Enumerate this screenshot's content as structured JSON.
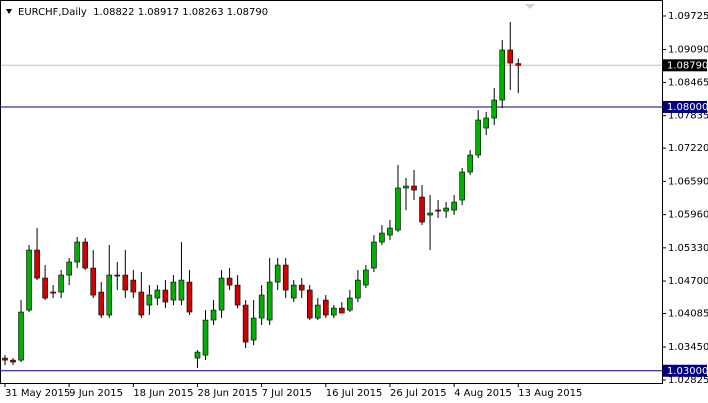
{
  "chart_data": {
    "type": "candlestick",
    "title": "EURCHF,Daily  1.08822 1.08917 1.08263 1.08790",
    "categories": [
      "31 May 2015",
      null,
      null,
      null,
      null,
      null,
      null,
      null,
      "9 Jun 2015",
      null,
      null,
      null,
      null,
      null,
      null,
      null,
      "18 Jun 2015",
      null,
      null,
      null,
      null,
      null,
      null,
      null,
      "28 Jun 2015",
      null,
      null,
      null,
      null,
      null,
      null,
      null,
      "7 Jul 2015",
      null,
      null,
      null,
      null,
      null,
      null,
      null,
      "16 Jul 2015",
      null,
      null,
      null,
      null,
      null,
      null,
      null,
      "26 Jul 2015",
      null,
      null,
      null,
      null,
      null,
      null,
      null,
      "4 Aug 2015",
      null,
      null,
      null,
      null,
      null,
      null,
      null,
      "13 Aug 2015"
    ],
    "open": [
      1.0324,
      1.03202,
      1.03202,
      1.0415,
      1.05288,
      1.04757,
      1.04492,
      1.04492,
      1.04814,
      1.05061,
      1.0544,
      1.04947,
      1.04492,
      1.04056,
      1.04814,
      1.04814,
      1.04719,
      1.04492,
      1.04245,
      1.04378,
      1.0453,
      1.0434,
      1.0434,
      1.04681,
      1.0324,
      1.03297,
      1.03961,
      1.0415,
      1.04757,
      1.04624,
      1.04245,
      1.03582,
      1.03999,
      1.03961,
      1.04681,
      1.05004,
      1.04378,
      1.04624,
      1.0453,
      1.03999,
      1.0434,
      1.04056,
      1.04188,
      1.0415,
      1.04378,
      1.04624,
      1.04947,
      1.0544,
      1.05572,
      1.05667,
      1.06464,
      1.06502,
      1.06293,
      1.05952,
      1.06046,
      1.06027,
      1.06046,
      1.06236,
      1.06767,
      1.07089,
      1.07601,
      1.07791,
      1.08132,
      1.0908,
      1.08822
    ],
    "high": [
      1.03297,
      1.0324,
      1.0434,
      1.05383,
      1.05705,
      1.05004,
      1.04624,
      1.04909,
      1.05137,
      1.05535,
      1.05516,
      1.05288,
      1.04681,
      1.05383,
      1.05061,
      1.05288,
      1.04909,
      1.04871,
      1.04624,
      1.04624,
      1.04719,
      1.04814,
      1.0544,
      1.04909,
      1.03392,
      1.0415,
      1.0434,
      1.04909,
      1.04947,
      1.04814,
      1.0434,
      1.0434,
      1.04624,
      1.05137,
      1.05137,
      1.05137,
      1.04719,
      1.04757,
      1.04624,
      1.04378,
      1.04435,
      1.04245,
      1.04302,
      1.0453,
      1.04909,
      1.05004,
      1.05572,
      1.05762,
      1.05857,
      1.069,
      1.06653,
      1.06805,
      1.06521,
      1.06331,
      1.06236,
      1.06198,
      1.06331,
      1.06843,
      1.07184,
      1.07942,
      1.07904,
      1.08359,
      1.0927,
      1.09611,
      1.08917
    ],
    "low": [
      1.03108,
      1.03108,
      1.03165,
      1.04113,
      1.04719,
      1.0434,
      1.04378,
      1.04378,
      1.04624,
      1.04947,
      1.04909,
      1.04378,
      1.03999,
      1.03999,
      1.0453,
      1.04378,
      1.04378,
      1.03999,
      1.04056,
      1.04245,
      1.04188,
      1.04245,
      1.04245,
      1.04056,
      1.03051,
      1.03202,
      1.03866,
      1.03999,
      1.0453,
      1.04188,
      1.0343,
      1.03487,
      1.03866,
      1.03866,
      1.0453,
      1.04378,
      1.04302,
      1.04378,
      1.03961,
      1.03961,
      1.03999,
      1.03999,
      1.04094,
      1.04113,
      1.04302,
      1.04567,
      1.04871,
      1.05383,
      1.05478,
      1.05629,
      1.06046,
      1.06236,
      1.05762,
      1.05288,
      1.05895,
      1.05895,
      1.05952,
      1.06141,
      1.0671,
      1.07032,
      1.07468,
      1.07658,
      1.0798,
      1.08322,
      1.08263
    ],
    "close": [
      1.03202,
      1.03165,
      1.04113,
      1.05288,
      1.04757,
      1.04378,
      1.04473,
      1.04814,
      1.05061,
      1.0544,
      1.04947,
      1.04435,
      1.04056,
      1.04814,
      1.04795,
      1.0453,
      1.04492,
      1.04056,
      1.04435,
      1.0453,
      1.04302,
      1.04681,
      1.04719,
      1.04113,
      1.03354,
      1.03961,
      1.0415,
      1.04757,
      1.04624,
      1.04245,
      1.03544,
      1.03999,
      1.04435,
      1.04681,
      1.05004,
      1.0453,
      1.04624,
      1.0453,
      1.03999,
      1.04245,
      1.04056,
      1.04188,
      1.04094,
      1.04378,
      1.04719,
      1.04909,
      1.0544,
      1.0561,
      1.05705,
      1.06464,
      1.06502,
      1.06426,
      1.05819,
      1.0599,
      1.06027,
      1.06084,
      1.06198,
      1.06767,
      1.07089,
      1.07753,
      1.07791,
      1.08132,
      1.0908,
      1.08833,
      1.0879
    ],
    "up_color": "#00b000",
    "down_color": "#d00000",
    "ylim": [
      1.02768,
      1.10028
    ],
    "yticks": [
      1.09725,
      {
        "value": 1.0909,
        "label": "1.09090"
      },
      1.08465,
      1.07835,
      {
        "value": 1.0722,
        "label": "1.07220"
      },
      {
        "value": 1.0659,
        "label": "1.06590"
      },
      {
        "value": 1.0596,
        "label": "1.05960"
      },
      {
        "value": 1.0533,
        "label": "1.05330"
      },
      {
        "value": 1.047,
        "label": "1.04700"
      },
      1.04085,
      {
        "value": 1.0345,
        "label": "1.03450"
      },
      1.02825
    ],
    "levels": [
      {
        "value": 1.0879,
        "label": "1.08790",
        "color": "#c0c0c0",
        "label_color": "#000000"
      },
      {
        "value": 1.08,
        "label": "1.08000",
        "color": "#000080",
        "label_color": "#000080"
      },
      {
        "value": 1.03,
        "label": "1.03000",
        "color": "#000080",
        "label_color": "#000080"
      }
    ]
  }
}
